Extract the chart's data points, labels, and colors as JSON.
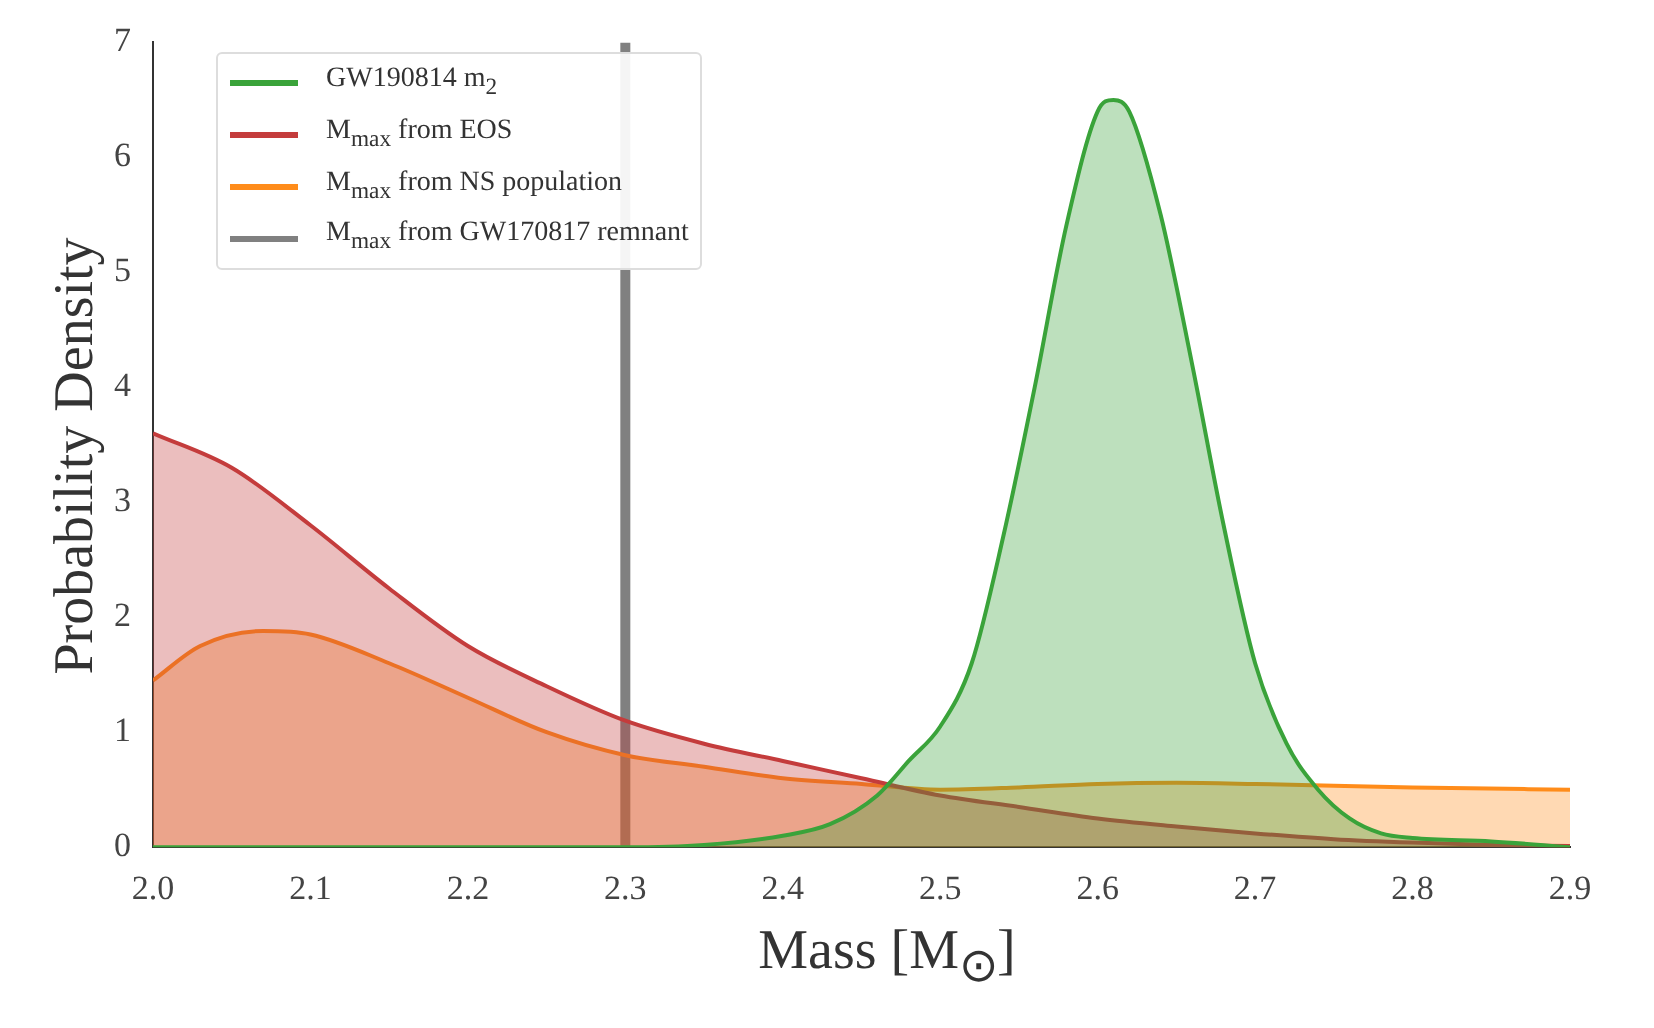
{
  "chart_data": {
    "type": "area",
    "xlabel": "Mass [M$_{⊙}$]",
    "ylabel": "Probability Density",
    "xlim": [
      2.0,
      2.9
    ],
    "xticks": [
      {
        "value": 2.0,
        "label": "2.0"
      },
      {
        "value": 2.1,
        "label": "2.1"
      },
      {
        "value": 2.2,
        "label": "2.2"
      },
      {
        "value": 2.3,
        "label": "2.3"
      },
      {
        "value": 2.4,
        "label": "2.4"
      },
      {
        "value": 2.5,
        "label": "2.5"
      },
      {
        "value": 2.6,
        "label": "2.6"
      },
      {
        "value": 2.7,
        "label": "2.7"
      },
      {
        "value": 2.8,
        "label": "2.8"
      },
      {
        "value": 2.9,
        "label": "2.9"
      }
    ],
    "ylim": [
      0,
      7
    ],
    "yticks": [
      0,
      1,
      2,
      3,
      4,
      5,
      6,
      7
    ],
    "grid": false,
    "legend": "top left",
    "series": [
      {
        "name": "GW190814 m$_{2}$",
        "color": "#3aa33a",
        "x": [
          2.0,
          2.3,
          2.35,
          2.4,
          2.43,
          2.46,
          2.48,
          2.5,
          2.52,
          2.54,
          2.56,
          2.58,
          2.6,
          2.61,
          2.62,
          2.64,
          2.66,
          2.68,
          2.7,
          2.72,
          2.74,
          2.76,
          2.78,
          2.8,
          2.85,
          2.9
        ],
        "values": [
          0,
          0,
          0.02,
          0.1,
          0.2,
          0.45,
          0.75,
          1.05,
          1.6,
          2.7,
          4.0,
          5.4,
          6.4,
          6.5,
          6.4,
          5.5,
          4.2,
          2.8,
          1.6,
          0.9,
          0.5,
          0.25,
          0.12,
          0.08,
          0.05,
          0
        ]
      },
      {
        "name": "M$_{max}$ from EOS",
        "color": "#c43c3c",
        "x": [
          2.0,
          2.05,
          2.1,
          2.15,
          2.2,
          2.25,
          2.3,
          2.35,
          2.4,
          2.45,
          2.5,
          2.55,
          2.6,
          2.65,
          2.7,
          2.75,
          2.8,
          2.85,
          2.9
        ],
        "values": [
          3.6,
          3.3,
          2.8,
          2.25,
          1.75,
          1.4,
          1.1,
          0.9,
          0.75,
          0.6,
          0.45,
          0.35,
          0.25,
          0.18,
          0.12,
          0.07,
          0.04,
          0.02,
          0.01
        ]
      },
      {
        "name": "M$_{max}$ from NS population",
        "color": "#ff8c1a",
        "x": [
          2.0,
          2.03,
          2.07,
          2.1,
          2.15,
          2.2,
          2.25,
          2.3,
          2.35,
          2.4,
          2.45,
          2.5,
          2.55,
          2.6,
          2.65,
          2.7,
          2.8,
          2.9
        ],
        "values": [
          1.45,
          1.75,
          1.88,
          1.85,
          1.6,
          1.3,
          1.0,
          0.8,
          0.7,
          0.6,
          0.55,
          0.5,
          0.52,
          0.55,
          0.56,
          0.55,
          0.52,
          0.5
        ]
      },
      {
        "name": "M$_{max}$ from GW170817 remnant",
        "color": "#808080",
        "type": "line",
        "x": [
          2.3,
          2.3
        ],
        "values": [
          0,
          7
        ]
      }
    ]
  }
}
